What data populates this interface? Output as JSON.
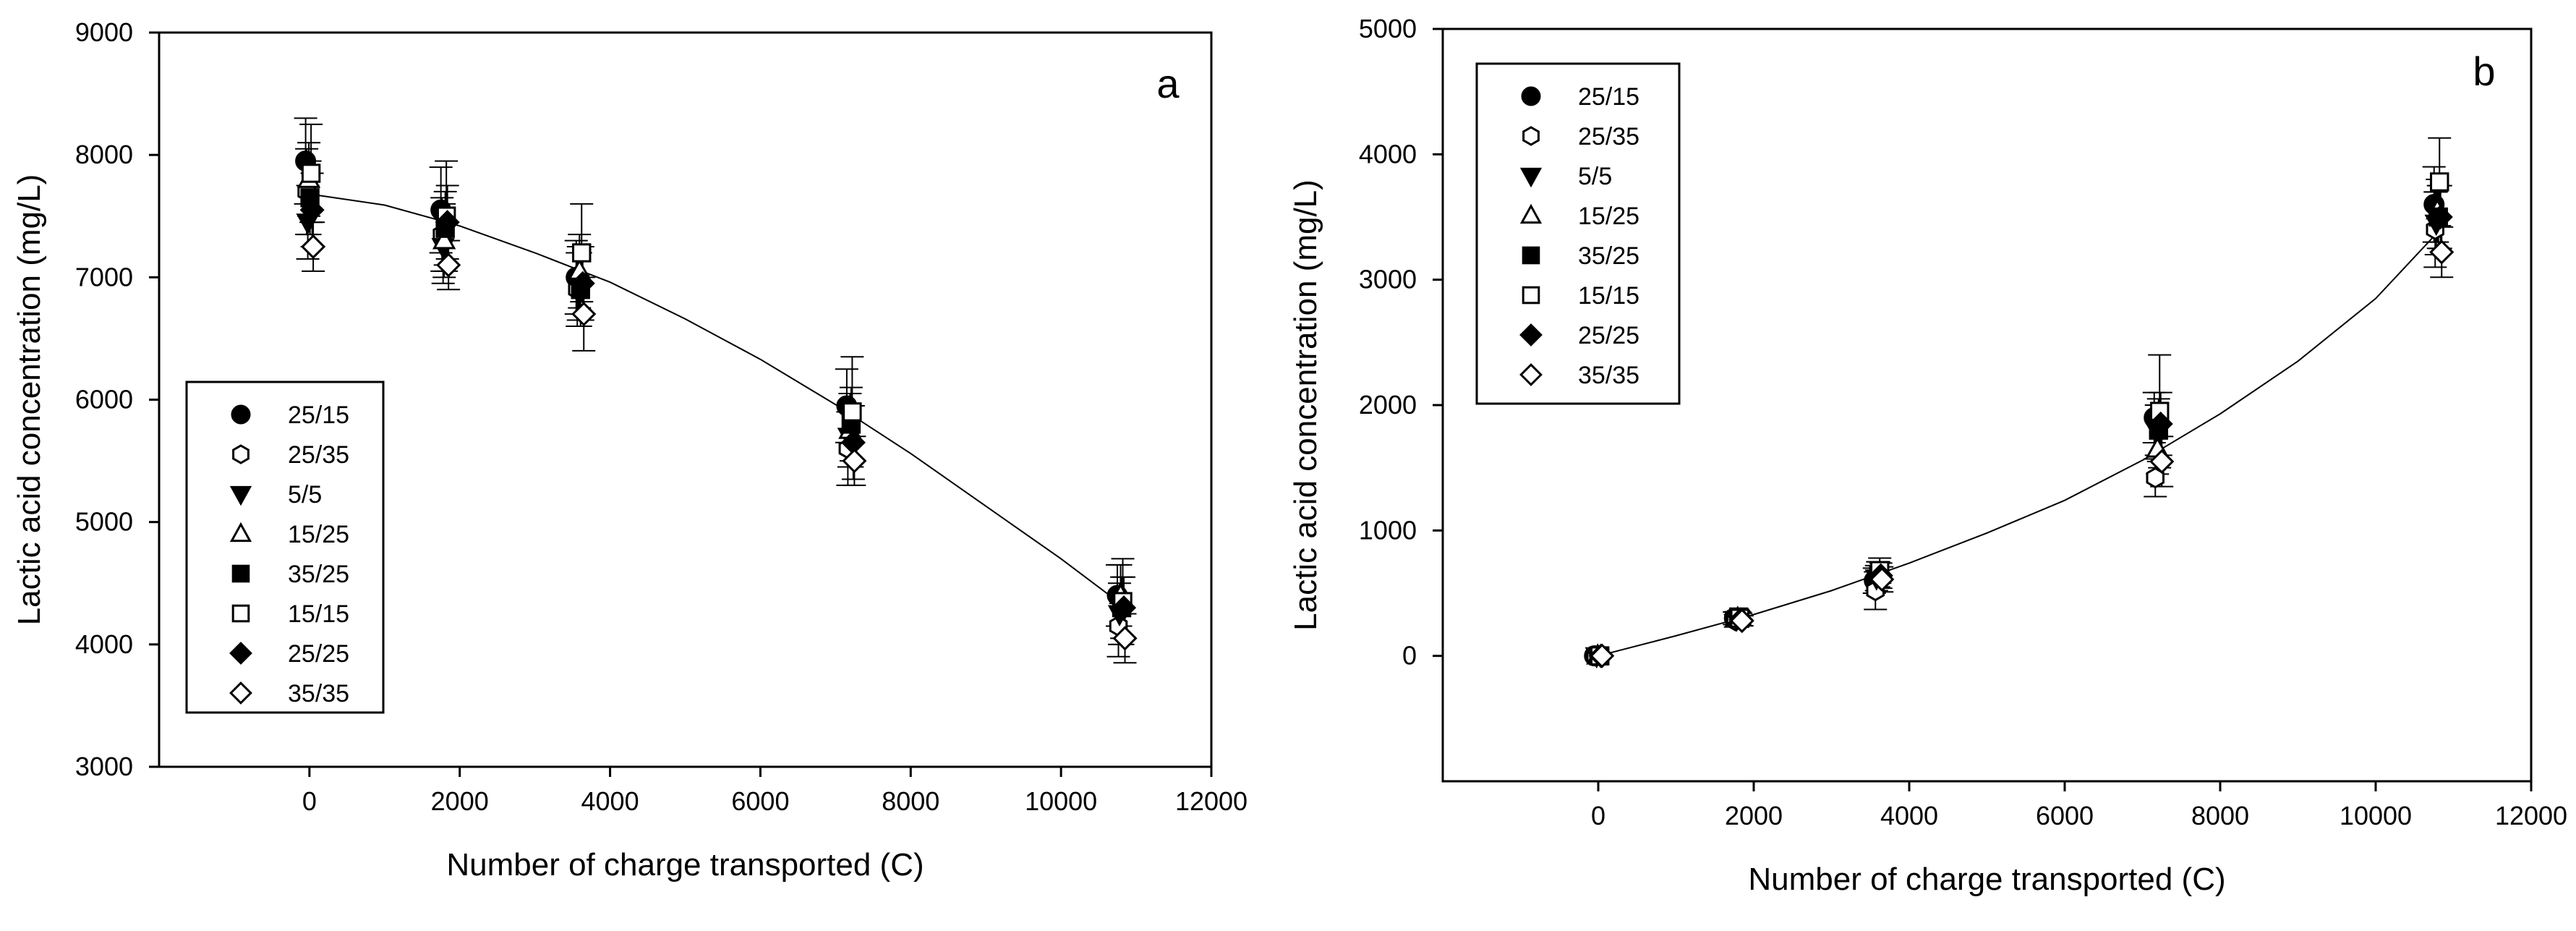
{
  "chart_data": [
    {
      "type": "scatter",
      "panel_label": "a",
      "xlabel": "Number of charge transported (C)",
      "ylabel": "Lactic acid concentration (mg/L)",
      "xlim": [
        -2000,
        12000
      ],
      "ylim": [
        3000,
        9000
      ],
      "xticks": [
        0,
        2000,
        4000,
        6000,
        8000,
        10000,
        12000
      ],
      "yticks": [
        3000,
        4000,
        5000,
        6000,
        7000,
        8000,
        9000
      ],
      "legend_position": "lower-left",
      "series": [
        {
          "name": "25/15",
          "marker": "circle",
          "fill": "filled",
          "x": [
            0,
            1800,
            3600,
            7200,
            10800
          ],
          "y": [
            7950,
            7550,
            7000,
            5950,
            4400
          ],
          "err": [
            350,
            350,
            300,
            300,
            250
          ]
        },
        {
          "name": "25/35",
          "marker": "hexagon",
          "fill": "open",
          "x": [
            0,
            1800,
            3600,
            7200,
            10800
          ],
          "y": [
            7700,
            7350,
            6900,
            5600,
            4150
          ],
          "err": [
            350,
            300,
            300,
            300,
            250
          ]
        },
        {
          "name": "5/5",
          "marker": "triangle-down",
          "fill": "filled",
          "x": [
            0,
            1800,
            3600,
            7200,
            10800
          ],
          "y": [
            7450,
            7250,
            6950,
            5700,
            4250
          ],
          "err": [
            300,
            300,
            300,
            250,
            250
          ]
        },
        {
          "name": "15/25",
          "marker": "triangle-up",
          "fill": "open",
          "x": [
            0,
            1800,
            3600,
            7200,
            10800
          ],
          "y": [
            7800,
            7300,
            7050,
            5750,
            4400
          ],
          "err": [
            300,
            300,
            300,
            300,
            250
          ]
        },
        {
          "name": "35/25",
          "marker": "square",
          "fill": "filled",
          "x": [
            0,
            1800,
            3600,
            7200,
            10800
          ],
          "y": [
            7650,
            7400,
            6900,
            5800,
            4300
          ],
          "err": [
            300,
            300,
            300,
            300,
            250
          ]
        },
        {
          "name": "15/15",
          "marker": "square",
          "fill": "open",
          "x": [
            0,
            1800,
            3600,
            7200,
            10800
          ],
          "y": [
            7850,
            7500,
            7200,
            5900,
            4350
          ],
          "err": [
            400,
            450,
            400,
            450,
            350
          ]
        },
        {
          "name": "25/25",
          "marker": "diamond",
          "fill": "filled",
          "x": [
            0,
            1800,
            3600,
            7200,
            10800
          ],
          "y": [
            7550,
            7450,
            6950,
            5650,
            4300
          ],
          "err": [
            300,
            300,
            300,
            300,
            250
          ]
        },
        {
          "name": "35/35",
          "marker": "diamond",
          "fill": "open",
          "x": [
            0,
            1800,
            3600,
            7200,
            10800
          ],
          "y": [
            7250,
            7100,
            6700,
            5500,
            4050
          ],
          "err": [
            200,
            200,
            300,
            200,
            200
          ]
        }
      ],
      "fit_curve": {
        "x": [
          0,
          1000,
          2000,
          3000,
          4000,
          5000,
          6000,
          7000,
          8000,
          9000,
          10000,
          10800
        ],
        "y": [
          7680,
          7590,
          7420,
          7200,
          6960,
          6660,
          6330,
          5960,
          5560,
          5130,
          4700,
          4330
        ]
      }
    },
    {
      "type": "scatter",
      "panel_label": "b",
      "xlabel": "Number of charge transported (C)",
      "ylabel": "Lactic acid concentration (mg/L)",
      "xlim": [
        -2000,
        12000
      ],
      "ylim": [
        -1000,
        5000
      ],
      "xticks": [
        0,
        2000,
        4000,
        6000,
        8000,
        10000,
        12000
      ],
      "yticks": [
        0,
        1000,
        2000,
        3000,
        4000,
        5000
      ],
      "legend_position": "top-left",
      "series": [
        {
          "name": "25/15",
          "marker": "circle",
          "fill": "filled",
          "x": [
            0,
            1800,
            3600,
            7200,
            10800
          ],
          "y": [
            0,
            300,
            600,
            1900,
            3600
          ],
          "err": [
            0,
            50,
            100,
            200,
            300
          ]
        },
        {
          "name": "25/35",
          "marker": "hexagon",
          "fill": "open",
          "x": [
            0,
            1800,
            3600,
            7200,
            10800
          ],
          "y": [
            0,
            280,
            520,
            1420,
            3400
          ],
          "err": [
            0,
            50,
            150,
            150,
            300
          ]
        },
        {
          "name": "5/5",
          "marker": "triangle-down",
          "fill": "filled",
          "x": [
            0,
            1800,
            3600,
            7200,
            10800
          ],
          "y": [
            0,
            290,
            620,
            1800,
            3450
          ],
          "err": [
            0,
            50,
            100,
            200,
            250
          ]
        },
        {
          "name": "15/25",
          "marker": "triangle-up",
          "fill": "open",
          "x": [
            0,
            1800,
            3600,
            7200,
            10800
          ],
          "y": [
            0,
            300,
            650,
            1650,
            3550
          ],
          "err": [
            0,
            50,
            100,
            200,
            250
          ]
        },
        {
          "name": "35/25",
          "marker": "square",
          "fill": "filled",
          "x": [
            0,
            1800,
            3600,
            7200,
            10800
          ],
          "y": [
            0,
            310,
            650,
            1800,
            3500
          ],
          "err": [
            0,
            50,
            100,
            250,
            250
          ]
        },
        {
          "name": "15/15",
          "marker": "square",
          "fill": "open",
          "x": [
            0,
            1800,
            3600,
            7200,
            10800
          ],
          "y": [
            0,
            300,
            680,
            1950,
            3780
          ],
          "err": [
            0,
            50,
            100,
            450,
            350
          ]
        },
        {
          "name": "25/25",
          "marker": "diamond",
          "fill": "filled",
          "x": [
            0,
            1800,
            3600,
            7200,
            10800
          ],
          "y": [
            0,
            290,
            640,
            1850,
            3500
          ],
          "err": [
            0,
            50,
            100,
            250,
            250
          ]
        },
        {
          "name": "35/35",
          "marker": "diamond",
          "fill": "open",
          "x": [
            0,
            1800,
            3600,
            7200,
            10800
          ],
          "y": [
            0,
            280,
            610,
            1550,
            3220
          ],
          "err": [
            0,
            40,
            100,
            200,
            200
          ]
        }
      ],
      "fit_curve": {
        "x": [
          0,
          1000,
          2000,
          3000,
          4000,
          5000,
          6000,
          7000,
          8000,
          9000,
          10000,
          10800
        ],
        "y": [
          0,
          160,
          330,
          520,
          740,
          980,
          1240,
          1560,
          1930,
          2350,
          2850,
          3380
        ]
      }
    }
  ]
}
